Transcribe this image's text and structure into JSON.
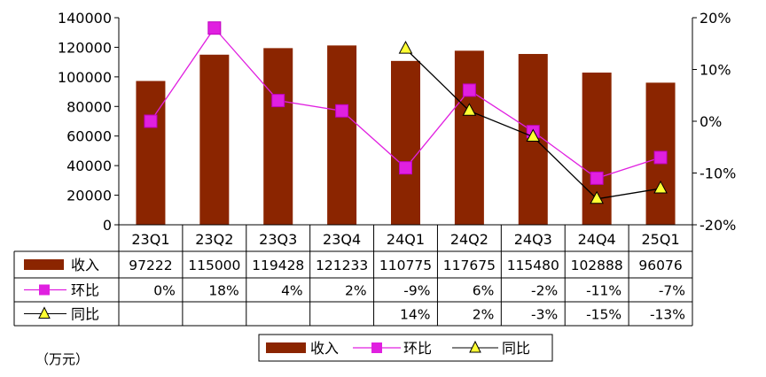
{
  "chart_data": {
    "type": "bar",
    "categories": [
      "23Q1",
      "23Q2",
      "23Q3",
      "23Q4",
      "24Q1",
      "24Q2",
      "24Q3",
      "24Q4",
      "25Q1"
    ],
    "series": [
      {
        "name": "收入",
        "kind": "bar",
        "axis": "left",
        "color": "#8B2500",
        "values": [
          97222,
          115000,
          119428,
          121233,
          110775,
          117675,
          115480,
          102888,
          96076
        ],
        "labels": [
          "97222",
          "115000",
          "119428",
          "121233",
          "110775",
          "117675",
          "115480",
          "102888",
          "96076"
        ]
      },
      {
        "name": "环比",
        "kind": "line",
        "axis": "right",
        "color": "#E020E0",
        "marker": "square",
        "values": [
          0,
          18,
          4,
          2,
          -9,
          6,
          -2,
          -11,
          -7
        ],
        "labels": [
          "0%",
          "18%",
          "4%",
          "2%",
          "-9%",
          "6%",
          "-2%",
          "-11%",
          "-7%"
        ]
      },
      {
        "name": "同比",
        "kind": "line",
        "axis": "right",
        "color": "#000000",
        "marker": "triangle",
        "marker_fill": "#FFFF33",
        "values": [
          null,
          null,
          null,
          null,
          14,
          2,
          -3,
          -15,
          -13
        ],
        "labels": [
          "",
          "",
          "",
          "",
          "14%",
          "2%",
          "-3%",
          "-15%",
          "-13%"
        ]
      }
    ],
    "ylim": [
      0,
      140000
    ],
    "yticks": [
      "0",
      "20000",
      "40000",
      "60000",
      "80000",
      "100000",
      "120000",
      "140000"
    ],
    "y2lim": [
      -20,
      20
    ],
    "y2ticks": [
      "-20%",
      "-10%",
      "0%",
      "10%",
      "20%"
    ],
    "legend_position": "bottom",
    "unit_note": "（万元）",
    "grid": false
  }
}
